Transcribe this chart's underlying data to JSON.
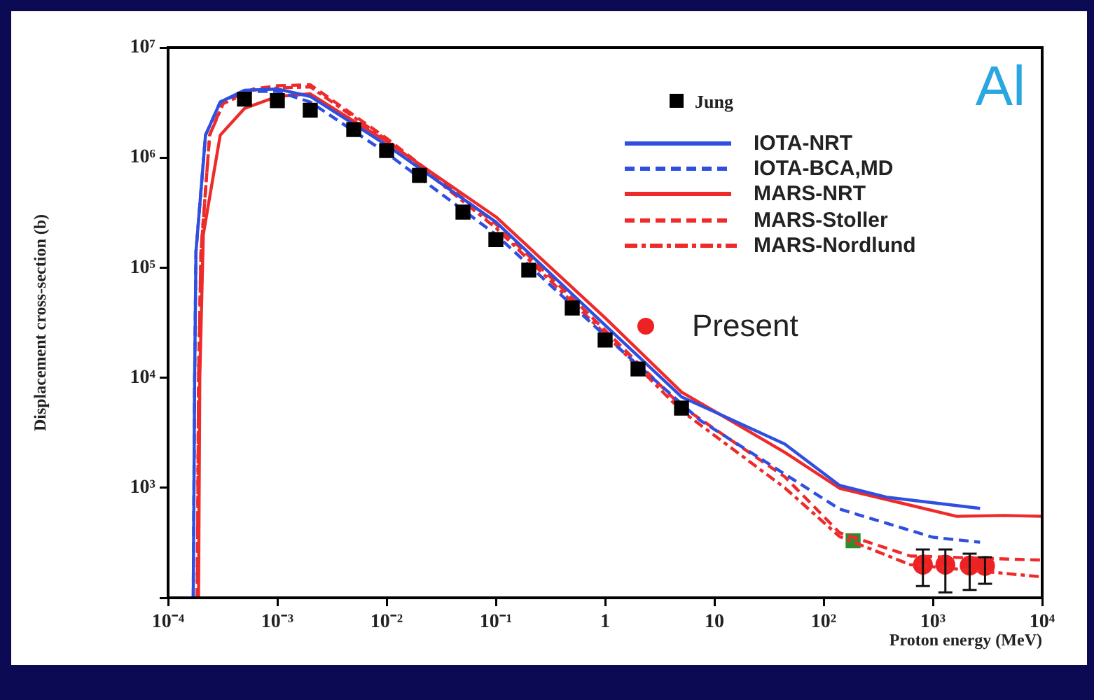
{
  "chart_data": {
    "type": "line",
    "xlabel": "Proton energy (MeV)",
    "ylabel": "Displacement cross-section (b)",
    "log": "xy",
    "grid": false,
    "legend": "top right",
    "xlim": [
      0.0001,
      10000
    ],
    "ylim": [
      100,
      10000000
    ],
    "xticks": [
      {
        "value": 0.0001,
        "label": "10⁻⁴"
      },
      {
        "value": 0.001,
        "label": "10⁻³"
      },
      {
        "value": 0.01,
        "label": "10⁻²"
      },
      {
        "value": 0.1,
        "label": "10⁻¹"
      },
      1,
      10,
      {
        "value": 100,
        "label": "10²"
      },
      {
        "value": 1000,
        "label": "10³"
      },
      {
        "value": 10000,
        "label": "10⁴"
      }
    ],
    "yticks": [
      {
        "value": 100,
        "label": null
      },
      {
        "value": 1000,
        "label": "10³"
      },
      {
        "value": 10000,
        "label": "10⁴"
      },
      {
        "value": 100000,
        "label": "10⁵"
      },
      {
        "value": 1000000,
        "label": "10⁶"
      },
      {
        "value": 10000000,
        "label": "10⁷"
      }
    ],
    "annotations": [
      "Al"
    ],
    "series": [
      {
        "name": "Jung",
        "type": "scatter",
        "marker": "square",
        "color": "#000000",
        "x": [
          0.0005,
          0.001,
          0.002,
          0.005,
          0.01,
          0.02,
          0.05,
          0.1,
          0.2,
          0.5,
          1,
          2,
          5
        ],
        "values": [
          3400000,
          3300000,
          2700000,
          1800000,
          1160000,
          690000,
          320000,
          180000,
          95000,
          43000,
          22000,
          12000,
          5300
        ]
      },
      {
        "name": "IOTA-NRT",
        "type": "line",
        "marker": "none",
        "line_style": "solid",
        "color": "#2f4fe0",
        "x": [
          0.00017,
          0.000175,
          0.00018,
          0.00022,
          0.0003,
          0.0005,
          0.001,
          0.002,
          0.01,
          0.1,
          1,
          5,
          11,
          44,
          140,
          380,
          2700
        ],
        "values": [
          100,
          10000,
          140000,
          1600000,
          3200000,
          4100000,
          4200000,
          3600000,
          1300000,
          260000,
          30000,
          6700,
          4700,
          2500,
          1050,
          820,
          650
        ]
      },
      {
        "name": "IOTA-BCA,MD",
        "type": "line",
        "marker": "none",
        "line_style": "dashed",
        "color": "#2f4fe0",
        "x": [
          0.00017,
          0.000175,
          0.00018,
          0.00022,
          0.0003,
          0.0005,
          0.001,
          0.002,
          0.01,
          0.1,
          1,
          7.4,
          30,
          140,
          1000,
          2700
        ],
        "values": [
          100,
          10000,
          140000,
          1600000,
          3200000,
          4000000,
          4000000,
          3200000,
          1100000,
          200000,
          24000,
          4100,
          1700,
          640,
          355,
          320
        ]
      },
      {
        "name": "MARS-NRT",
        "type": "line",
        "marker": "none",
        "line_style": "solid",
        "color": "#ee2a2a",
        "x": [
          0.00019,
          0.000195,
          0.00021,
          0.0003,
          0.0005,
          0.001,
          0.002,
          0.01,
          0.1,
          1,
          5,
          11,
          44,
          140,
          380,
          1650,
          4500,
          10000
        ],
        "values": [
          100,
          10000,
          200000,
          1600000,
          2800000,
          3600000,
          3800000,
          1400000,
          290000,
          35000,
          7400,
          4700,
          2100,
          990,
          780,
          550,
          560,
          550
        ]
      },
      {
        "name": "MARS-Stoller",
        "type": "line",
        "marker": "none",
        "line_style": "dashed",
        "color": "#ee2a2a",
        "x": [
          0.000185,
          0.00019,
          0.0002,
          0.00024,
          0.00032,
          0.0006,
          0.001,
          0.002,
          0.01,
          0.1,
          1,
          5,
          44,
          140,
          620,
          10000
        ],
        "values": [
          100,
          10000,
          140000,
          1600000,
          3200000,
          4200000,
          4500000,
          4600000,
          1500000,
          250000,
          27000,
          5500,
          1260,
          390,
          240,
          220
        ]
      },
      {
        "name": "MARS-Nordlund",
        "type": "line",
        "marker": "none",
        "line_style": "dotted",
        "color": "#ee2a2a",
        "x": [
          0.000185,
          0.00019,
          0.0002,
          0.00024,
          0.00032,
          0.0006,
          0.001,
          0.002,
          0.01,
          0.1,
          1,
          5,
          44,
          140,
          620,
          10000
        ],
        "values": [
          100,
          10000,
          140000,
          1600000,
          3100000,
          4100000,
          4300000,
          4400000,
          1450000,
          230000,
          25000,
          5000,
          1000,
          360,
          200,
          155
        ]
      },
      {
        "name": "Present",
        "type": "scatter",
        "marker": "circle",
        "color": "#ee2222",
        "x": [
          810,
          1300,
          2170,
          3000
        ],
        "values": [
          200,
          200,
          196,
          195
        ],
        "errors": [
          [
            128,
            275
          ],
          [
            112,
            275
          ],
          [
            118,
            252
          ],
          [
            134,
            234
          ]
        ]
      },
      {
        "type": "scatter",
        "marker": "square",
        "color": "#2e8b2e",
        "x": [
          186
        ],
        "values": [
          330
        ]
      }
    ]
  }
}
